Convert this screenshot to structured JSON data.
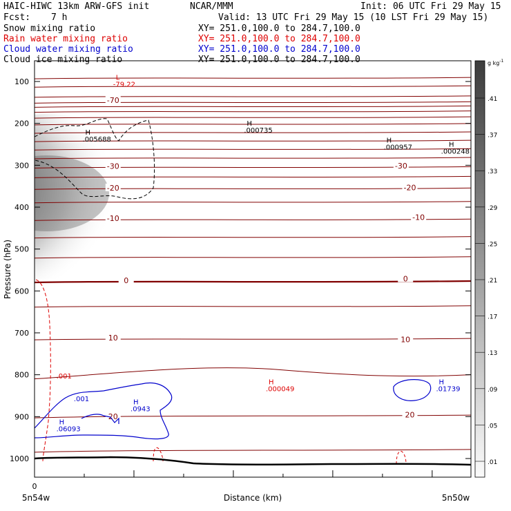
{
  "header": {
    "model": "HAIC-HIWC 13km ARW-GFS init",
    "org": "NCAR/MMM",
    "init": "Init: 06 UTC Fri 29 May 15",
    "fcst_label": "Fcst:",
    "fcst_value": "7 h",
    "valid": "Valid: 13 UTC Fri 29 May 15 (10 LST Fri 29 May 15)"
  },
  "fields": [
    {
      "label": "Snow mixing ratio",
      "xy": "XY= 251.0,100.0 to 284.7,100.0",
      "color": "#000000"
    },
    {
      "label": "Rain water mixing ratio",
      "xy": "XY= 251.0,100.0 to 284.7,100.0",
      "color": "#dd0000"
    },
    {
      "label": "Cloud water mixing ratio",
      "xy": "XY= 251.0,100.0 to 284.7,100.0",
      "color": "#0000cc"
    },
    {
      "label": "Cloud ice mixing ratio",
      "xy": "XY= 251.0,100.0 to 284.7,100.0",
      "color": "#000000"
    }
  ],
  "chart_data": {
    "type": "contour-cross-section",
    "ylabel": "Pressure (hPa)",
    "xlabel": "Distance (km)",
    "ylim": [
      1040,
      50
    ],
    "y_ticks": [
      100,
      200,
      300,
      400,
      500,
      600,
      700,
      800,
      900,
      1000
    ],
    "x_tick_labels": [
      "0"
    ],
    "x_end_labels": [
      "5n54w",
      "5n50w"
    ],
    "colorbar": {
      "unit": "g kg",
      "unit_exp": "-1",
      "levels": [
        ".41",
        ".37",
        ".33",
        ".29",
        ".25",
        ".21",
        ".17",
        ".13",
        ".09",
        ".05",
        ".01"
      ]
    },
    "temperature_contours": {
      "color": "#800000",
      "labels": [
        {
          "text": "-70",
          "x": 0.18,
          "p": 148
        },
        {
          "text": "-30",
          "x": 0.18,
          "p": 305
        },
        {
          "text": "-30",
          "x": 0.84,
          "p": 304
        },
        {
          "text": "-20",
          "x": 0.18,
          "p": 357
        },
        {
          "text": "-20",
          "x": 0.86,
          "p": 356
        },
        {
          "text": "-10",
          "x": 0.18,
          "p": 430
        },
        {
          "text": "-10",
          "x": 0.88,
          "p": 427
        },
        {
          "text": "0",
          "x": 0.21,
          "p": 578
        },
        {
          "text": "0",
          "x": 0.85,
          "p": 574
        },
        {
          "text": "10",
          "x": 0.18,
          "p": 715
        },
        {
          "text": "10",
          "x": 0.85,
          "p": 719
        },
        {
          "text": "20",
          "x": 0.18,
          "p": 903
        },
        {
          "text": "20",
          "x": 0.86,
          "p": 899
        }
      ]
    },
    "extrema": [
      {
        "kind": "L",
        "value": "-79.22",
        "x": 0.18,
        "p": 112,
        "color": "#dd0000"
      },
      {
        "kind": "H",
        "value": ".005688",
        "x": 0.11,
        "p": 243,
        "color": "#000000"
      },
      {
        "kind": "H",
        "value": ".000735",
        "x": 0.48,
        "p": 222,
        "color": "#000000"
      },
      {
        "kind": "H",
        "value": ".000957",
        "x": 0.8,
        "p": 262,
        "color": "#000000"
      },
      {
        "kind": "H",
        "value": ".000248",
        "x": 1.0,
        "p": 272,
        "color": "#000000"
      },
      {
        "kind": "H",
        "value": ".000049",
        "x": 0.53,
        "p": 839,
        "color": "#dd0000"
      },
      {
        "kind": "H",
        "value": ".01739",
        "x": 0.92,
        "p": 839,
        "color": "#0000cc"
      },
      {
        "kind": "H",
        "value": ".0943",
        "x": 0.22,
        "p": 887,
        "color": "#0000cc"
      },
      {
        "kind": "H",
        "value": ".06093",
        "x": 0.05,
        "p": 935,
        "color": "#0000cc"
      }
    ],
    "contour_labels": [
      {
        "text": ".001",
        "x": 0.05,
        "p": 809,
        "color": "#dd0000"
      },
      {
        "text": ".001",
        "x": 0.09,
        "p": 863,
        "color": "#0000cc"
      }
    ]
  }
}
